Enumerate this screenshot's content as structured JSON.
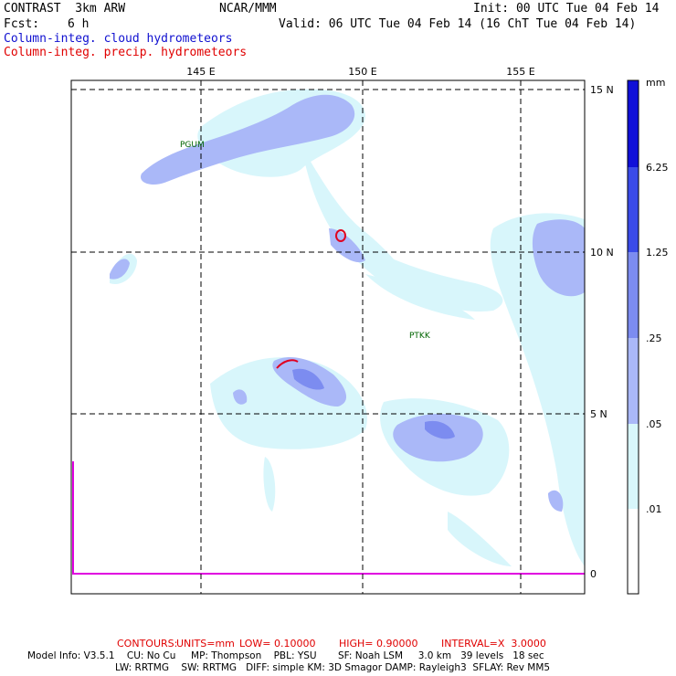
{
  "header": {
    "model": "CONTRAST  3km ARW",
    "org": "NCAR/MMM",
    "init": "Init: 00 UTC Tue 04 Feb 14",
    "fcst_label": "Fcst:",
    "fcst_value": "6 h",
    "valid": "Valid: 06 UTC Tue 04 Feb 14 (16 ChT Tue 04 Feb 14)",
    "legend_cloud": "Column-integ. cloud hydrometeors",
    "legend_precip": "Column-integ. precip. hydrometeors"
  },
  "map": {
    "lon_labels": [
      "145 E",
      "150 E",
      "155 E"
    ],
    "lat_labels": [
      "15 N",
      "10 N",
      "5 N",
      "0"
    ],
    "stations": [
      "PGUM",
      "PTKK"
    ]
  },
  "colorbar": {
    "unit": "mm",
    "levels": [
      "6.25",
      "1.25",
      ".25",
      ".05",
      ".01"
    ],
    "colors": [
      "#1010d8",
      "#3a4be8",
      "#7c8cf0",
      "#aab8f8",
      "#d8f6fb",
      "#ffffff"
    ]
  },
  "contours": {
    "title": "CONTOURS:",
    "units": "UNITS=mm",
    "low": "LOW= 0.10000",
    "high": "HIGH= 0.90000",
    "interval": "INTERVAL=X  3.0000"
  },
  "model_info": {
    "line1": "Model Info: V3.5.1    CU: No Cu     MP: Thompson    PBL: YSU       SF: Noah LSM     3.0 km   39 levels   18 sec",
    "line2": "LW: RRTMG    SW: RRTMG   DIFF: simple KM: 3D Smagor DAMP: Rayleigh3  SFLAY: Rev MM5"
  }
}
